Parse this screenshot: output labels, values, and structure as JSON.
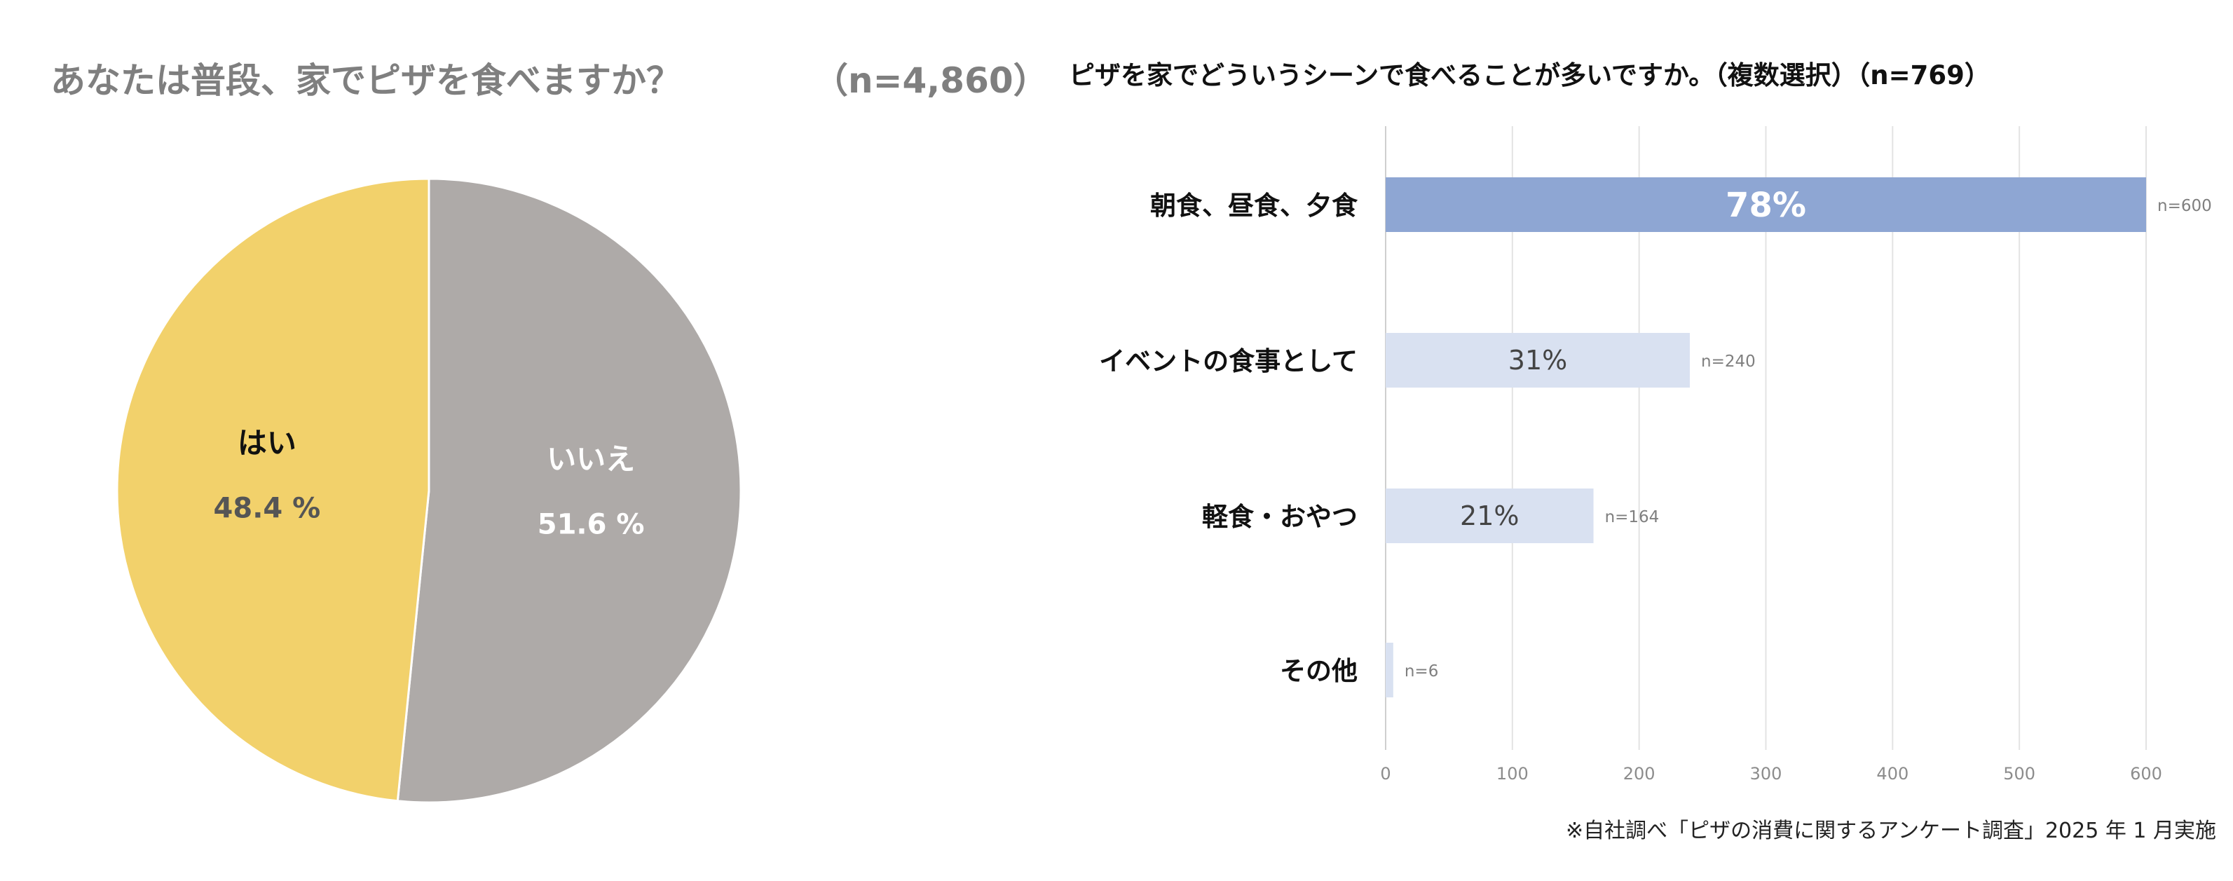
{
  "chart_data": [
    {
      "type": "pie",
      "title": "あなたは普段、家でピザを食べますか？",
      "subtitle": "（n=4,860）",
      "slices": [
        {
          "label": "はい",
          "value": 48.4,
          "value_label": "48.4 %",
          "color": "#F2D16B",
          "label_color": "#111111",
          "value_color": "#555555"
        },
        {
          "label": "いいえ",
          "value": 51.6,
          "value_label": "51.6 %",
          "color": "#AEAAA8",
          "label_color": "#ffffff",
          "value_color": "#ffffff"
        }
      ]
    },
    {
      "type": "bar",
      "orientation": "horizontal",
      "title": "ピザを家でどういうシーンで食べることが多いですか。（複数選択）（n=769）",
      "categories": [
        "朝食、昼食、夕食",
        "イベントの食事として",
        "軽食・おやつ",
        "その他"
      ],
      "values": [
        600,
        240,
        164,
        6
      ],
      "percent_labels": [
        "78%",
        "31%",
        "21%",
        ""
      ],
      "n_labels": [
        "n=600",
        "n=240",
        "n=164",
        "n=6"
      ],
      "bar_colors": [
        "#8EA6D3",
        "#D9E1F1",
        "#D9E1F1",
        "#D9E1F1"
      ],
      "percent_label_colors": [
        "#ffffff",
        "#444444",
        "#444444",
        "#444444"
      ],
      "xlim": [
        0,
        600
      ],
      "x_ticks": [
        0,
        100,
        200,
        300,
        400,
        500,
        600
      ],
      "grid": true,
      "xlabel": "",
      "ylabel": ""
    }
  ],
  "footnote": "※自社調べ「ピザの消費に関するアンケート調査」2025 年 1 月実施"
}
